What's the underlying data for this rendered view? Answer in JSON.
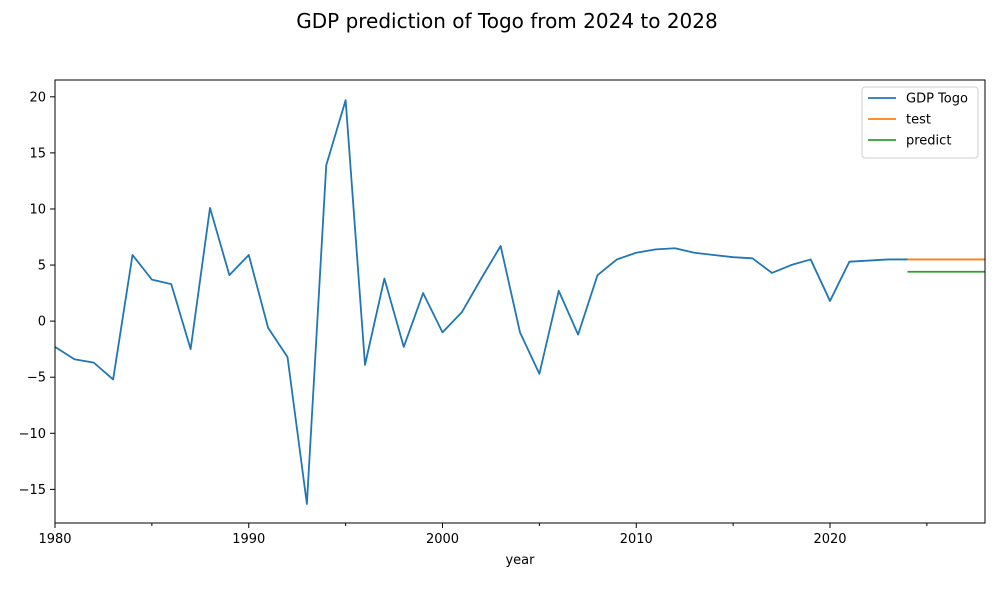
{
  "chart_data": {
    "type": "line",
    "title": "GDP prediction of Togo from 2024 to 2028",
    "xlabel": "year",
    "ylabel": "",
    "xlim": [
      1980,
      2028
    ],
    "ylim": [
      -18,
      21.5
    ],
    "xticks": [
      1980,
      1990,
      2000,
      2010,
      2020
    ],
    "xticks_minor": [
      1985,
      1995,
      2005,
      2015,
      2025
    ],
    "yticks": [
      -15,
      -10,
      -5,
      0,
      5,
      10,
      15,
      20
    ],
    "grid": false,
    "legend_position": "top-right",
    "series": [
      {
        "name": "GDP Togo",
        "color": "#1f77b4",
        "x": [
          1980,
          1981,
          1982,
          1983,
          1984,
          1985,
          1986,
          1987,
          1988,
          1989,
          1990,
          1991,
          1992,
          1993,
          1994,
          1995,
          1996,
          1997,
          1998,
          1999,
          2000,
          2001,
          2002,
          2003,
          2004,
          2005,
          2006,
          2007,
          2008,
          2009,
          2010,
          2011,
          2012,
          2013,
          2014,
          2015,
          2016,
          2017,
          2018,
          2019,
          2020,
          2021,
          2022,
          2023,
          2024
        ],
        "y": [
          -2.3,
          -3.4,
          -3.7,
          -5.2,
          5.9,
          3.7,
          3.3,
          -2.5,
          10.1,
          4.1,
          5.9,
          -0.6,
          -3.2,
          -16.3,
          13.9,
          19.7,
          -3.9,
          3.8,
          -2.3,
          2.5,
          -1.0,
          0.8,
          3.8,
          6.7,
          -1.0,
          -4.7,
          2.7,
          -1.2,
          4.1,
          5.5,
          6.1,
          6.4,
          6.5,
          6.1,
          5.9,
          5.7,
          5.6,
          4.3,
          5.0,
          5.5,
          1.8,
          5.3,
          5.4,
          5.5,
          5.5
        ]
      },
      {
        "name": "test",
        "color": "#ff7f0e",
        "x": [
          2024,
          2028
        ],
        "y": [
          5.5,
          5.5
        ]
      },
      {
        "name": "predict",
        "color": "#2ca02c",
        "x": [
          2024,
          2028
        ],
        "y": [
          4.4,
          4.4
        ]
      }
    ]
  }
}
